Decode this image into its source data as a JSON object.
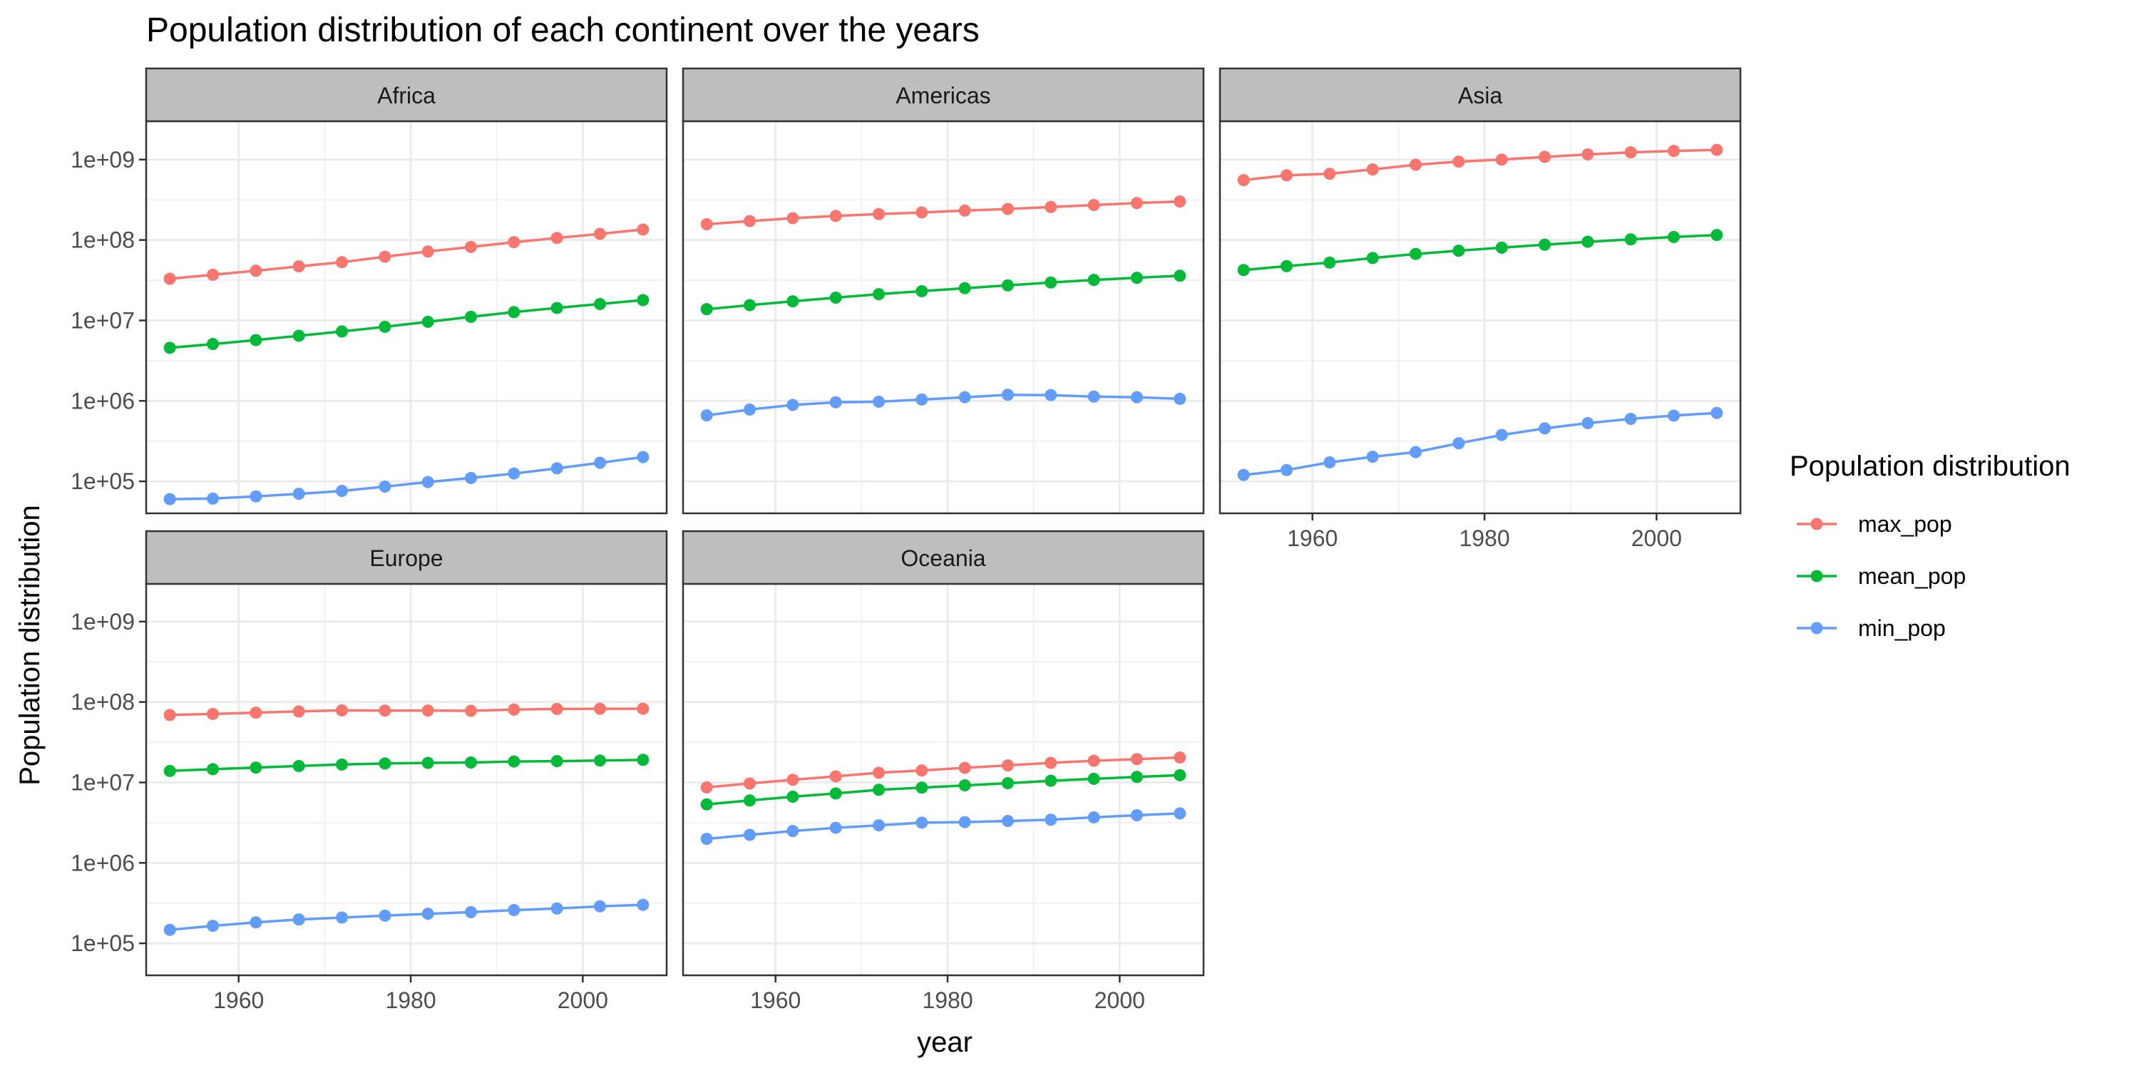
{
  "chart_data": {
    "type": "line",
    "title": "Population distribution of each continent over the years",
    "xlabel": "year",
    "ylabel": "Population distribution",
    "y_scale": "log10",
    "ylim": [
      40000,
      3000000000
    ],
    "xlim": [
      1949.25,
      2009.75
    ],
    "x_ticks": [
      1960,
      1980,
      2000
    ],
    "x_tick_labels": [
      "1960",
      "1980",
      "2000"
    ],
    "y_ticks": [
      100000,
      1000000,
      10000000,
      100000000,
      1000000000
    ],
    "y_tick_labels": [
      "1e+05",
      "1e+06",
      "1e+07",
      "1e+08",
      "1e+09"
    ],
    "grid": true,
    "legend": {
      "title": "Population distribution",
      "position": "right",
      "entries": [
        "max_pop",
        "mean_pop",
        "min_pop"
      ]
    },
    "colors": {
      "max_pop": "#F8766D",
      "mean_pop": "#00BA38",
      "min_pop": "#619CFF"
    },
    "x": [
      1952,
      1957,
      1962,
      1967,
      1972,
      1977,
      1982,
      1987,
      1992,
      1997,
      2002,
      2007
    ],
    "facets": [
      {
        "name": "Africa",
        "series": [
          {
            "name": "max_pop",
            "values": [
              33000000,
              37000000,
              41500000,
              47000000,
              53000000,
              62000000,
              72000000,
              82000000,
              94000000,
              106000000,
              119000000,
              135000000
            ]
          },
          {
            "name": "mean_pop",
            "values": [
              4570000,
              5090000,
              5700000,
              6450000,
              7300000,
              8330000,
              9610000,
              11100000,
              12700000,
              14300000,
              16000000,
              17900000
            ]
          },
          {
            "name": "min_pop",
            "values": [
              60000,
              61000,
              65000,
              70000,
              76000,
              86000,
              98000,
              110000,
              125000,
              145000,
              170000,
              200000
            ]
          }
        ]
      },
      {
        "name": "Americas",
        "series": [
          {
            "name": "max_pop",
            "values": [
              157000000,
              172000000,
              187000000,
              199000000,
              210000000,
              220000000,
              232000000,
              243000000,
              257000000,
              272000000,
              288000000,
              301000000
            ]
          },
          {
            "name": "mean_pop",
            "values": [
              13800000,
              15500000,
              17300000,
              19200000,
              21200000,
              23100000,
              25200000,
              27300000,
              29600000,
              31900000,
              33900000,
              35950000
            ]
          },
          {
            "name": "min_pop",
            "values": [
              660000,
              780000,
              890000,
              960000,
              975000,
              1040000,
              1110000,
              1190000,
              1180000,
              1130000,
              1110000,
              1060000
            ]
          }
        ]
      },
      {
        "name": "Asia",
        "series": [
          {
            "name": "max_pop",
            "values": [
              556000000,
              637000000,
              666000000,
              755000000,
              862000000,
              943000000,
              1000000000,
              1080000000,
              1160000000,
              1230000000,
              1280000000,
              1320000000
            ]
          },
          {
            "name": "mean_pop",
            "values": [
              42300000,
              47400000,
              52400000,
              59700000,
              67100000,
              73700000,
              80300000,
              87500000,
              95000000,
              101900000,
              109100000,
              115500000
            ]
          },
          {
            "name": "min_pop",
            "values": [
              120000,
              138000,
              172000,
              202000,
              231000,
              297000,
              377000,
              455000,
              529000,
              598000,
              656000,
              708000
            ]
          }
        ]
      },
      {
        "name": "Europe",
        "series": [
          {
            "name": "max_pop",
            "values": [
              69000000,
              71000000,
              73700000,
              76400000,
              78700000,
              78200000,
              78300000,
              77700000,
              80600000,
              82000000,
              82400000,
              82400000
            ]
          },
          {
            "name": "mean_pop",
            "values": [
              13900000,
              14600000,
              15300000,
              16000000,
              16700000,
              17200000,
              17500000,
              17700000,
              18200000,
              18400000,
              18700000,
              19100000
            ]
          },
          {
            "name": "min_pop",
            "values": [
              147000,
              165000,
              182000,
              198000,
              209000,
              221000,
              233000,
              244000,
              259000,
              271000,
              288000,
              301000
            ]
          }
        ]
      },
      {
        "name": "Oceania",
        "series": [
          {
            "name": "max_pop",
            "values": [
              8690000,
              9710000,
              10800000,
              11900000,
              13200000,
              14100000,
              15200000,
              16300000,
              17500000,
              18600000,
              19500000,
              20400000
            ]
          },
          {
            "name": "mean_pop",
            "values": [
              5340000,
              5970000,
              6640000,
              7300000,
              8100000,
              8620000,
              9200000,
              9780000,
              10500000,
              11100000,
              11700000,
              12300000
            ]
          },
          {
            "name": "min_pop",
            "values": [
              1990000,
              2230000,
              2490000,
              2730000,
              2930000,
              3160000,
              3210000,
              3320000,
              3440000,
              3680000,
              3910000,
              4120000
            ]
          }
        ]
      }
    ]
  }
}
